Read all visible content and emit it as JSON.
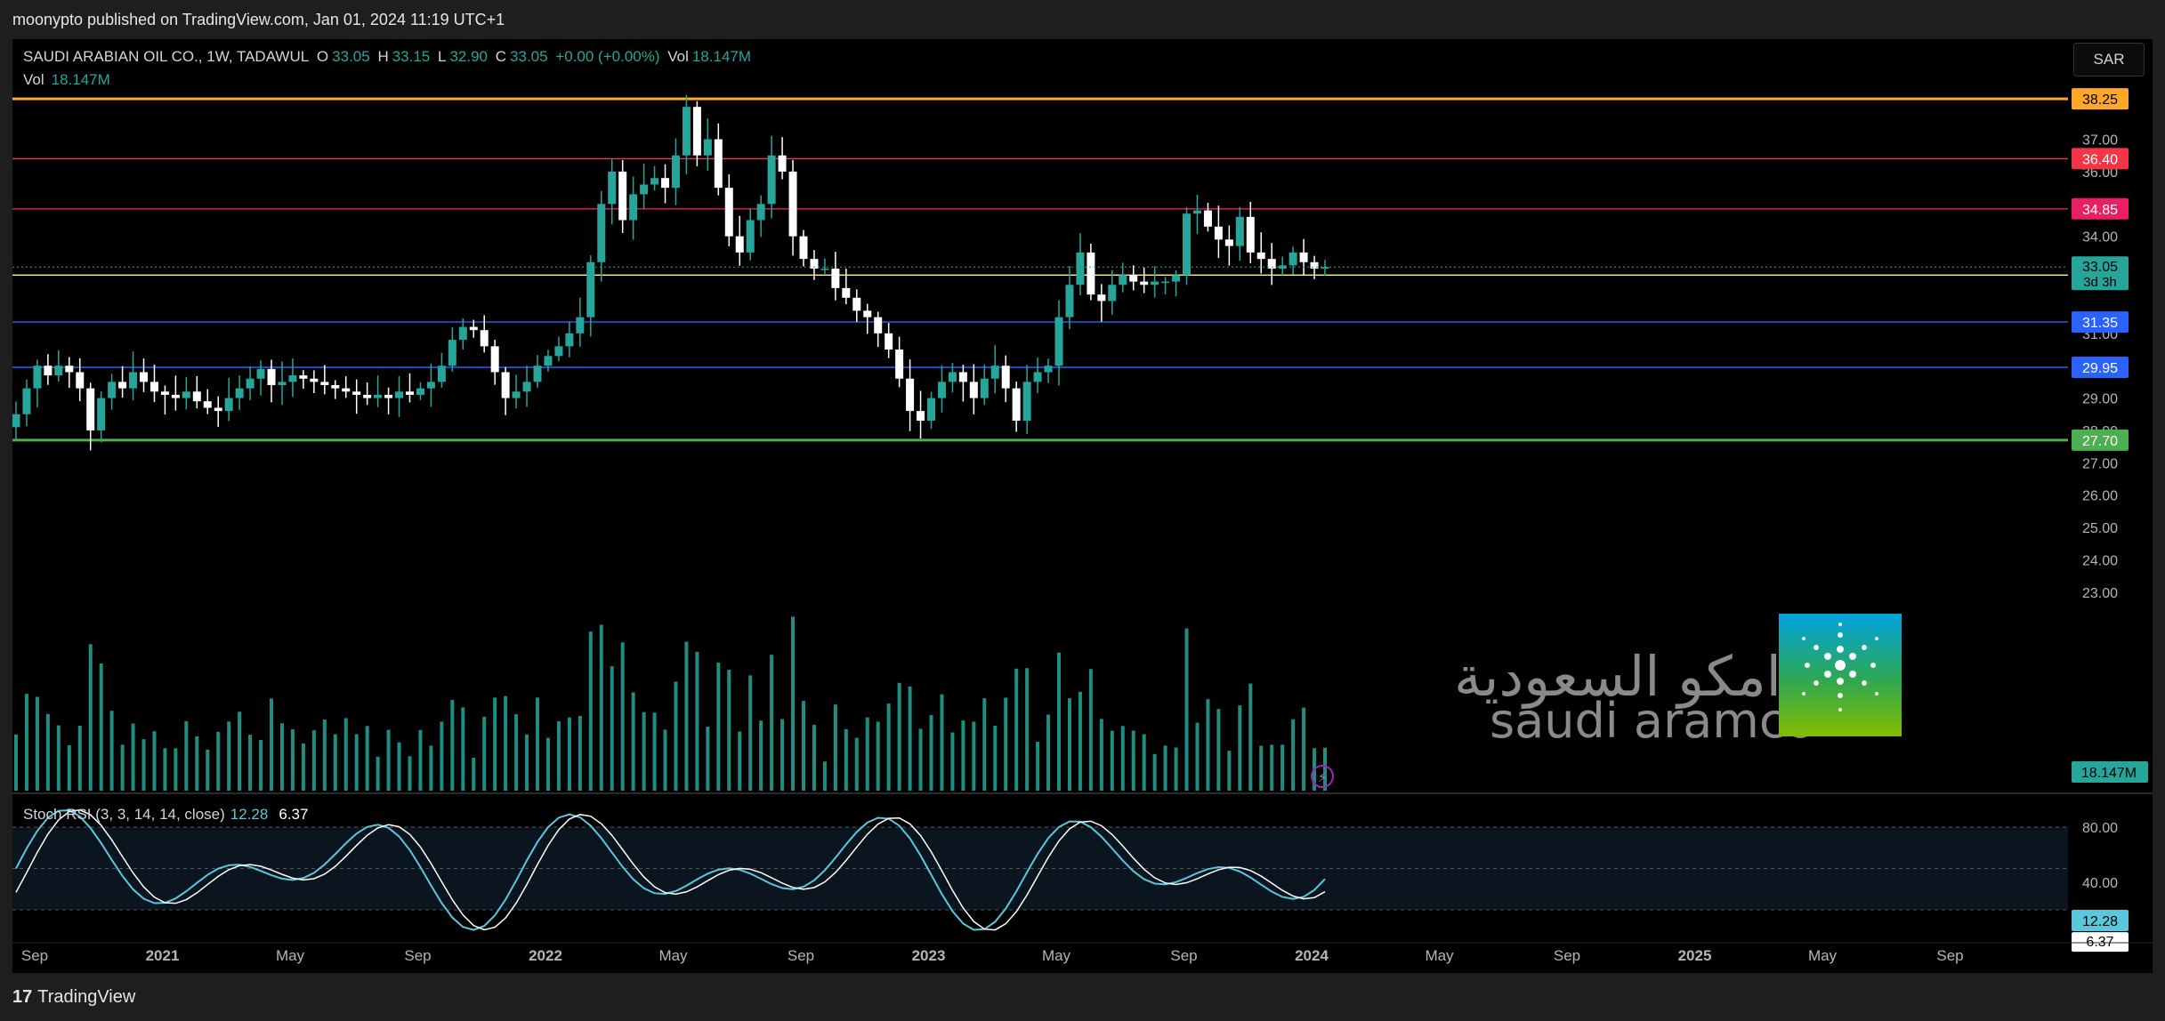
{
  "header": {
    "published": "moonypto published on TradingView.com, Jan 01, 2024 11:19 UTC+1"
  },
  "legend": {
    "symbol": "SAUDI ARABIAN OIL CO., 1W, TADAWUL",
    "o_label": "O",
    "o": "33.05",
    "h_label": "H",
    "h": "33.15",
    "l_label": "L",
    "l": "32.90",
    "c_label": "C",
    "c": "33.05",
    "change": "+0.00 (+0.00%)",
    "vol_label": "Vol",
    "vol": "18.147M"
  },
  "volume_legend": {
    "label": "Vol",
    "value": "18.147M"
  },
  "stoch_legend": {
    "label": "Stoch RSI (3, 3, 14, 14, close)",
    "k": "12.28",
    "d": "6.37"
  },
  "currency_button": "SAR",
  "brand": {
    "name": "TradingView",
    "logo": "17"
  },
  "watermark": {
    "arabic": "أرامكو السعودية",
    "english": "saudi aramco"
  },
  "colors": {
    "up": "#26a69a",
    "down": "#ffffff",
    "bg": "#000000",
    "grid": "#1a1a1a",
    "text": "#d1d4dc"
  },
  "icons": {
    "alert": "lightning-icon"
  },
  "chart_data": [
    {
      "type": "candlestick",
      "title": "SAUDI ARABIAN OIL CO., 1W, TADAWUL",
      "ylim": [
        22.5,
        38.5
      ],
      "y_ticks": [
        "37.00",
        "36.00",
        "34.00",
        "31.00",
        "29.00",
        "28.00",
        "27.00",
        "26.00",
        "25.00",
        "24.00",
        "23.00"
      ],
      "x_ticks": [
        "Sep",
        "2021",
        "May",
        "Sep",
        "2022",
        "May",
        "Sep",
        "2023",
        "May",
        "Sep",
        "2024",
        "May",
        "Sep",
        "2025",
        "May",
        "Sep"
      ],
      "horizontal_levels": [
        {
          "value": 38.25,
          "label": "38.25",
          "color": "#ffa726"
        },
        {
          "value": 36.4,
          "label": "36.40",
          "color": "#f23645"
        },
        {
          "value": 34.85,
          "label": "34.85",
          "color": "#e91e63"
        },
        {
          "value": 32.8,
          "label": "32.80",
          "color": "#fff59d"
        },
        {
          "value": 31.35,
          "label": "31.35",
          "color": "#2962ff"
        },
        {
          "value": 29.95,
          "label": "29.95",
          "color": "#2962ff"
        },
        {
          "value": 27.7,
          "label": "27.70",
          "color": "#4caf50"
        }
      ],
      "last_price": {
        "value": "33.05",
        "countdown": "3d 3h"
      },
      "close_series": [
        28.5,
        29.3,
        30.0,
        29.7,
        30.0,
        29.8,
        29.3,
        28.0,
        29.0,
        29.5,
        29.3,
        29.8,
        29.5,
        29.2,
        29.1,
        29.0,
        29.2,
        28.9,
        28.7,
        28.6,
        29.0,
        29.3,
        29.6,
        29.9,
        29.4,
        29.5,
        29.7,
        29.6,
        29.5,
        29.4,
        29.3,
        29.2,
        29.1,
        29.0,
        29.1,
        29.0,
        29.2,
        29.1,
        29.3,
        29.5,
        30.0,
        30.8,
        31.2,
        31.1,
        30.6,
        29.8,
        29.0,
        29.2,
        29.5,
        30.0,
        30.3,
        30.6,
        31.0,
        31.5,
        33.2,
        35.0,
        36.0,
        34.5,
        35.3,
        35.6,
        35.8,
        35.5,
        36.5,
        38.0,
        36.5,
        37.0,
        35.5,
        34.0,
        33.5,
        34.5,
        35.0,
        36.5,
        36.0,
        34.0,
        33.3,
        33.0,
        33.0,
        32.4,
        32.1,
        31.7,
        31.5,
        31.0,
        30.5,
        29.6,
        28.6,
        28.3,
        29.0,
        29.5,
        29.8,
        29.5,
        29.0,
        29.6,
        30.0,
        29.3,
        28.3,
        29.5,
        29.8,
        30.0,
        31.5,
        32.5,
        33.5,
        32.2,
        32.0,
        32.5,
        32.8,
        32.6,
        32.5,
        32.6,
        32.6,
        32.8,
        34.7,
        34.8,
        34.3,
        33.9,
        33.7,
        34.6,
        33.5,
        33.3,
        33.0,
        33.1,
        33.5,
        33.2,
        33.0,
        33.05
      ]
    },
    {
      "type": "bar",
      "title": "Vol",
      "last_value": "18.147M"
    },
    {
      "type": "line",
      "title": "Stoch RSI (3, 3, 14, 14, close)",
      "ylim": [
        0,
        100
      ],
      "y_ticks": [
        "80.00",
        "40.00"
      ],
      "k_last": "12.28",
      "d_last": "6.37"
    }
  ]
}
